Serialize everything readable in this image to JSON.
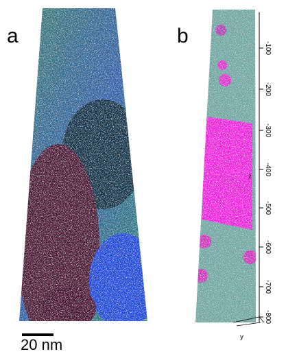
{
  "panel_a": {
    "label": "a",
    "scale_bar": "20 nm"
  },
  "panel_b": {
    "label": "b",
    "axis_ticks": [
      "-100",
      "-200",
      "-300",
      "-400",
      "-500",
      "-600",
      "-700",
      "-800"
    ],
    "axis_name": "z",
    "bottom_axis_name": "y"
  }
}
